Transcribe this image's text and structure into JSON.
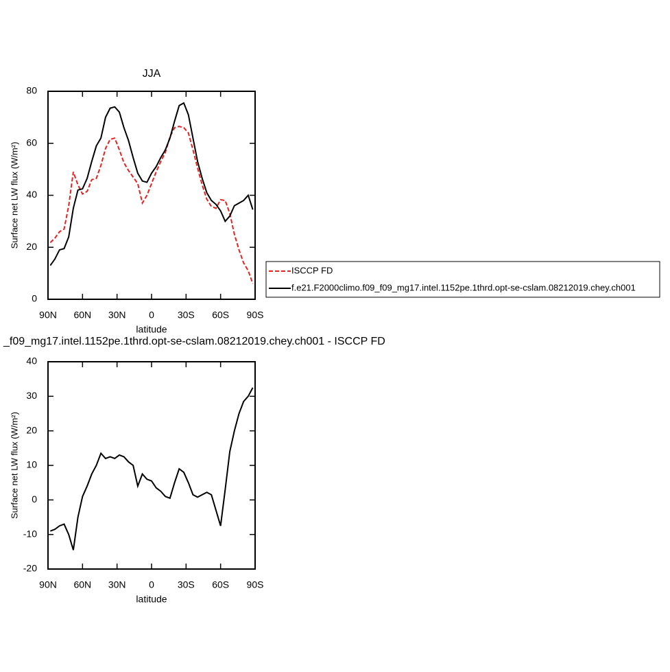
{
  "chart_data": [
    {
      "type": "line",
      "title": "JJA",
      "xlabel": "latitude",
      "ylabel": "Surface net LW flux (W/m²)",
      "x": [
        88,
        84,
        80,
        76,
        72,
        68,
        64,
        60,
        56,
        52,
        48,
        44,
        40,
        36,
        32,
        28,
        24,
        20,
        16,
        12,
        8,
        4,
        0,
        -4,
        -8,
        -12,
        -16,
        -20,
        -24,
        -28,
        -32,
        -36,
        -40,
        -44,
        -48,
        -52,
        -56,
        -60,
        -64,
        -68,
        -72,
        -76,
        -80,
        -84,
        -88
      ],
      "xlim": [
        90,
        -90
      ],
      "xticks": [
        {
          "value": 90,
          "label": "90N"
        },
        {
          "value": 60,
          "label": "60N"
        },
        {
          "value": 30,
          "label": "30N"
        },
        0,
        {
          "value": -30,
          "label": "30S"
        },
        {
          "value": -60,
          "label": "60S"
        },
        {
          "value": -90,
          "label": "90S"
        }
      ],
      "ylim": [
        0,
        80
      ],
      "yticks": [
        0,
        20,
        40,
        60,
        80
      ],
      "legend": "outside-right",
      "series": [
        {
          "name": "ISCCP FD",
          "color": "#e8201f",
          "line_style": "dashed",
          "values": [
            21.8,
            23.5,
            26,
            27,
            36,
            49,
            44,
            40.5,
            41.5,
            46,
            46.5,
            51.5,
            58,
            61.5,
            62,
            57.5,
            52.5,
            49.5,
            47,
            44.5,
            37,
            40,
            44.5,
            49,
            53,
            56.5,
            62.5,
            66,
            66.5,
            66,
            64,
            57.5,
            50.5,
            44,
            38.5,
            35.7,
            35,
            38.3,
            38,
            33,
            25,
            19,
            14,
            11,
            6
          ]
        },
        {
          "name": "f.e21.F2000climo.f09_f09_mg17.intel.1152pe.1thrd.opt-se-cslam.08212019.chey.ch001",
          "color": "#000000",
          "line_style": "solid",
          "values": [
            13,
            15.5,
            19,
            19.5,
            24,
            35,
            42,
            42.5,
            46.5,
            53,
            59,
            62,
            70,
            73.5,
            74,
            72,
            66,
            61,
            54.5,
            48.5,
            45.5,
            45,
            48.5,
            51,
            54.5,
            57.5,
            62,
            68.5,
            74.5,
            75.5,
            71,
            62,
            53,
            46.5,
            41,
            38,
            36.5,
            34,
            30,
            32,
            36,
            37,
            38,
            40,
            34.5
          ]
        }
      ]
    },
    {
      "type": "line",
      "title": "_f09_mg17.intel.1152pe.1thrd.opt-se-cslam.08212019.chey.ch001 - ISCCP FD",
      "xlabel": "latitude",
      "ylabel": "Surface net LW flux (W/m²)",
      "x": [
        88,
        84,
        80,
        76,
        72,
        68,
        64,
        60,
        56,
        52,
        48,
        44,
        40,
        36,
        32,
        28,
        24,
        20,
        16,
        12,
        8,
        4,
        0,
        -4,
        -8,
        -12,
        -16,
        -20,
        -24,
        -28,
        -32,
        -36,
        -40,
        -44,
        -48,
        -52,
        -56,
        -60,
        -64,
        -68,
        -72,
        -76,
        -80,
        -84,
        -88
      ],
      "xlim": [
        90,
        -90
      ],
      "xticks": [
        {
          "value": 90,
          "label": "90N"
        },
        {
          "value": 60,
          "label": "60N"
        },
        {
          "value": 30,
          "label": "30N"
        },
        0,
        {
          "value": -30,
          "label": "30S"
        },
        {
          "value": -60,
          "label": "60S"
        },
        {
          "value": -90,
          "label": "90S"
        }
      ],
      "ylim": [
        -20,
        40
      ],
      "yticks": [
        -20,
        -10,
        0,
        10,
        20,
        30,
        40
      ],
      "series": [
        {
          "color": "#000000",
          "line_style": "solid",
          "values": [
            -9,
            -8.5,
            -7.5,
            -7,
            -10,
            -14.5,
            -5,
            1,
            4,
            7.5,
            10,
            13.5,
            12,
            12.5,
            12,
            13,
            12.5,
            11,
            10,
            4,
            7.5,
            6,
            5.5,
            3.5,
            2.5,
            1,
            0.5,
            5,
            9,
            8,
            5,
            1.5,
            0.8,
            1.5,
            2.2,
            1.5,
            -3,
            -7.5,
            3,
            14,
            20,
            25,
            28.5,
            30,
            32.5
          ]
        }
      ]
    }
  ]
}
